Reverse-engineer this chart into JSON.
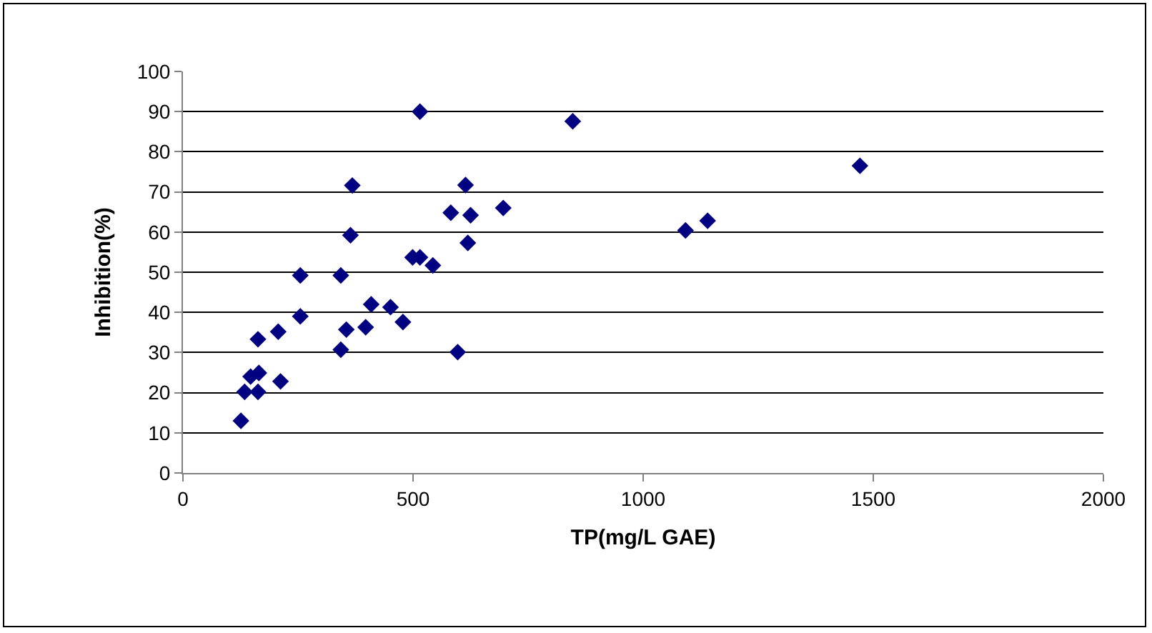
{
  "chart_data": {
    "type": "scatter",
    "xlabel": "TP(mg/L GAE)",
    "ylabel": "Inhibition(%)",
    "x": [
      126,
      134,
      163,
      147,
      165,
      212,
      163,
      207,
      255,
      255,
      343,
      343,
      355,
      368,
      364,
      397,
      409,
      451,
      478,
      515,
      499,
      515,
      543,
      597,
      582,
      614,
      625,
      619,
      696,
      847,
      1092,
      1140,
      1471
    ],
    "series": [
      {
        "color": "#000080",
        "values": [
          13,
          20.2,
          20.2,
          24,
          24.9,
          22.8,
          33.3,
          35.2,
          39,
          49.2,
          49.2,
          30.7,
          35.7,
          71.6,
          59.2,
          36.3,
          42,
          41.3,
          37.6,
          90,
          53.7,
          53.7,
          51.7,
          30.1,
          64.8,
          71.7,
          64.2,
          57.3,
          66,
          87.6,
          60.4,
          62.8,
          76.5
        ]
      }
    ],
    "xlim": [
      0,
      2000
    ],
    "xticks": [
      0,
      500,
      1000,
      1500,
      2000
    ],
    "ylim": [
      0,
      100
    ],
    "yticks": [
      0,
      10,
      20,
      30,
      40,
      50,
      60,
      70,
      80,
      90,
      100
    ],
    "grid": "y",
    "marker": "diamond",
    "legend": false
  }
}
